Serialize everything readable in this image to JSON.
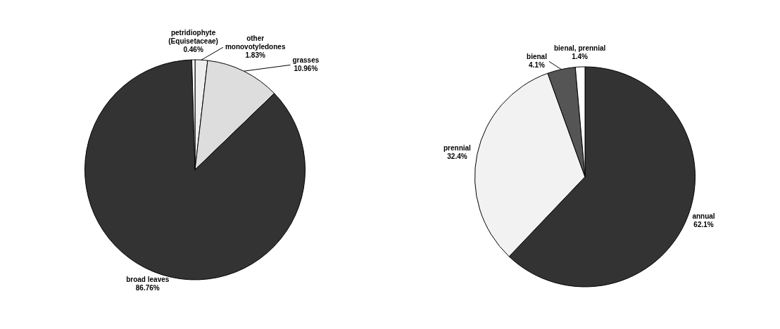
{
  "chart_data": [
    {
      "type": "pie",
      "categories": [
        "other monovotyledones",
        "grasses",
        "broad leaves",
        "petridiophyte (Equisetaceae)"
      ],
      "values": [
        1.83,
        10.96,
        86.76,
        0.46
      ],
      "value_labels": [
        "1.83%",
        "10.96%",
        "86.76%",
        "0.46%"
      ],
      "colors": [
        "#eeeeee",
        "#dddddd",
        "#333333",
        "#ffffff"
      ],
      "legend": false
    },
    {
      "type": "pie",
      "categories": [
        "annual",
        "prennial",
        "bienal",
        "bienal, prennial"
      ],
      "values": [
        62.1,
        32.4,
        4.1,
        1.4
      ],
      "value_labels": [
        "62.1%",
        "32.4%",
        "4.1%",
        "1.4%"
      ],
      "colors": [
        "#333333",
        "#f2f2f2",
        "#555555",
        "#ffffff"
      ],
      "legend": false
    }
  ]
}
